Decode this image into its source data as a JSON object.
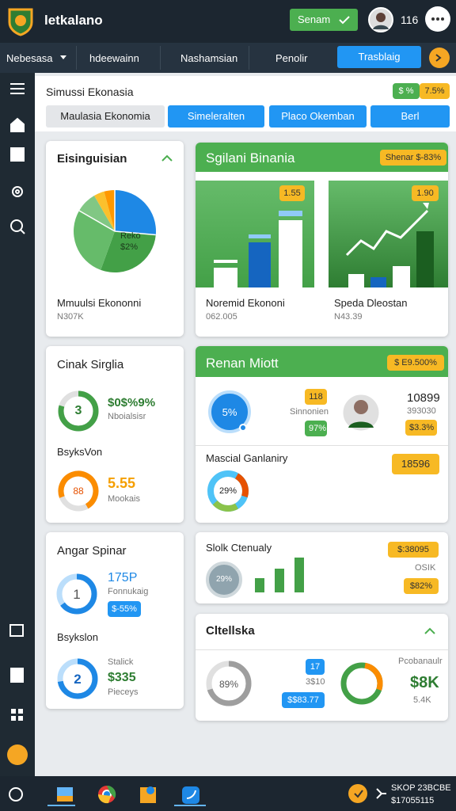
{
  "top_bar": {
    "brand": "letkalano",
    "button": "Senam",
    "count": "116"
  },
  "nav": {
    "items": [
      "Nebesasa",
      "hdeewainn",
      "Nashamsian",
      "Penolir"
    ],
    "active": "Trasblaig"
  },
  "header": {
    "title": "Simussi Ekonasia",
    "badges": [
      "$ %",
      "7.5%"
    ],
    "tabs": [
      "Maulasia Ekonomia",
      "Simeleralten",
      "Placo Okemban",
      "Berl"
    ]
  },
  "cards": [
    {
      "title": "Eisinguisian",
      "pie_label": "Reko",
      "pie_value": "$2%",
      "caption": "Mmuulsi Ekononni",
      "caption_value": "N307K"
    },
    {
      "title": "Sgilani Binania",
      "badge": "Shenar $-83%",
      "panels": [
        {
          "badge": "1.55",
          "label": "Noremid Ekononi",
          "value": "062.005"
        },
        {
          "badge": "1.90",
          "label": "Speda Dleostan",
          "value": "N43.39"
        }
      ]
    },
    {
      "title": "Cinak Sirglia",
      "items": [
        {
          "ring": "3",
          "value": "$0$%9%",
          "label": "Nboialsisr"
        },
        {
          "heading": "BsyksVon",
          "ring": "88",
          "value": "5.55",
          "label": "Mookais"
        }
      ]
    },
    {
      "title": "Renan Miott",
      "badge": "$ E9.500%",
      "ring": "5%",
      "badges": [
        "118",
        "97%"
      ],
      "label": "Sinnonien",
      "stat": "10899",
      "stat_sub": "393030",
      "stat_badge": "$3.3%",
      "section": "Mascial Ganlaniry",
      "section_badge": "18596",
      "section_ring": "29%"
    },
    {
      "title": "Angar Spinar",
      "items": [
        {
          "ring": "1",
          "value": "175P",
          "label": "Fonnukaig",
          "badge": "$-55%"
        },
        {
          "heading": "Bsykslon",
          "ring": "2",
          "label": "Stalick",
          "value": "$335",
          "sub": "Pieceys"
        }
      ]
    },
    {
      "title": "Slolk Ctenualy",
      "ring": "29%",
      "badges": [
        "$:38095",
        "OSIK",
        "$82%"
      ]
    },
    {
      "title": "Cltellska",
      "ring": "89%",
      "badge": "17",
      "mid": "3$10",
      "mid_badge": "$$83.77",
      "label": "Pcobanaulr",
      "value": "$8K",
      "sub": "5.4K"
    }
  ],
  "taskbar": {
    "lines": [
      "SKOP 23BCBE",
      "$17055115"
    ]
  }
}
